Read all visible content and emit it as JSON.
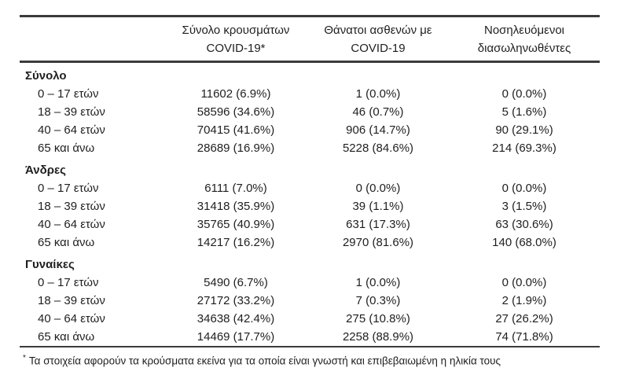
{
  "colors": {
    "text": "#1f1f1f",
    "rule": "#3b3b3b",
    "background": "#ffffff"
  },
  "table": {
    "columns": [
      {
        "line1": "Σύνολο κρουσμάτων",
        "line2": "COVID-19*"
      },
      {
        "line1": "Θάνατοι ασθενών με",
        "line2": "COVID-19"
      },
      {
        "line1": "Νοσηλευόμενοι",
        "line2": "διασωληνωθέντες"
      }
    ],
    "sections": [
      {
        "label": "Σύνολο",
        "rows": [
          {
            "label": "0 – 17 ετών",
            "cases": "11602 (6.9%)",
            "deaths": "1 (0.0%)",
            "intubated": "0 (0.0%)"
          },
          {
            "label": "18 – 39 ετών",
            "cases": "58596 (34.6%)",
            "deaths": "46 (0.7%)",
            "intubated": "5 (1.6%)"
          },
          {
            "label": "40 – 64 ετών",
            "cases": "70415 (41.6%)",
            "deaths": "906 (14.7%)",
            "intubated": "90 (29.1%)"
          },
          {
            "label": "65 και άνω",
            "cases": "28689 (16.9%)",
            "deaths": "5228 (84.6%)",
            "intubated": "214 (69.3%)"
          }
        ]
      },
      {
        "label": "Άνδρες",
        "rows": [
          {
            "label": "0 – 17 ετών",
            "cases": "6111 (7.0%)",
            "deaths": "0 (0.0%)",
            "intubated": "0 (0.0%)"
          },
          {
            "label": "18 – 39 ετών",
            "cases": "31418 (35.9%)",
            "deaths": "39 (1.1%)",
            "intubated": "3 (1.5%)"
          },
          {
            "label": "40 – 64 ετών",
            "cases": "35765 (40.9%)",
            "deaths": "631 (17.3%)",
            "intubated": "63 (30.6%)"
          },
          {
            "label": "65 και άνω",
            "cases": "14217 (16.2%)",
            "deaths": "2970 (81.6%)",
            "intubated": "140 (68.0%)"
          }
        ]
      },
      {
        "label": "Γυναίκες",
        "rows": [
          {
            "label": "0 – 17 ετών",
            "cases": "5490 (6.7%)",
            "deaths": "1 (0.0%)",
            "intubated": "0 (0.0%)"
          },
          {
            "label": "18 – 39 ετών",
            "cases": "27172 (33.2%)",
            "deaths": "7 (0.3%)",
            "intubated": "2 (1.9%)"
          },
          {
            "label": "40 – 64 ετών",
            "cases": "34638 (42.4%)",
            "deaths": "275 (10.8%)",
            "intubated": "27 (26.2%)"
          },
          {
            "label": "65 και άνω",
            "cases": "14469 (17.7%)",
            "deaths": "2258 (88.9%)",
            "intubated": "74 (71.8%)"
          }
        ]
      }
    ],
    "footnote": {
      "marker": "*",
      "text": "Τα στοιχεία αφορούν τα κρούσματα εκείνα για τα οποία είναι γνωστή και επιβεβαιωμένη η ηλικία τους"
    }
  }
}
